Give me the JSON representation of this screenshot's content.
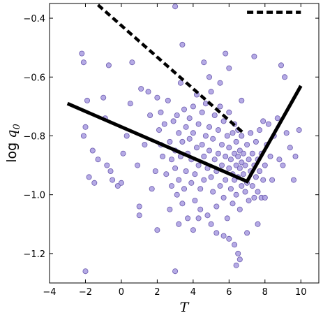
{
  "chart_data": {
    "type": "scatter",
    "title": "",
    "xlabel": "T",
    "ylabel": {
      "prefix": "log ",
      "symbol": "q",
      "subscript": "0"
    },
    "xlim": [
      -4,
      11
    ],
    "ylim": [
      -1.3,
      -0.35
    ],
    "xticks": [
      -4,
      -2,
      0,
      2,
      4,
      6,
      8,
      10
    ],
    "xtick_labels": [
      "−4",
      "−2",
      "0",
      "2",
      "4",
      "6",
      "8",
      "10"
    ],
    "yticks": [
      -1.2,
      -1.0,
      -0.8,
      -0.6,
      -0.4
    ],
    "ytick_labels": [
      "−1.2",
      "−1.0",
      "−0.8",
      "−0.6",
      "−0.4"
    ],
    "grid": false,
    "legend": "none",
    "colors": {
      "points_fill": "#a89be0",
      "points_edge": "#6a5aad",
      "lines": "#000000"
    },
    "points": [
      [
        -2.2,
        -0.52
      ],
      [
        -2.1,
        -0.55
      ],
      [
        -2.0,
        -0.77
      ],
      [
        -2.1,
        -0.8
      ],
      [
        -1.9,
        -0.68
      ],
      [
        -1.6,
        -0.85
      ],
      [
        -1.8,
        -0.94
      ],
      [
        -1.5,
        -0.96
      ],
      [
        -1.3,
        -0.88
      ],
      [
        -1.0,
        -0.67
      ],
      [
        -0.9,
        -0.74
      ],
      [
        -0.8,
        -0.9
      ],
      [
        -0.7,
        -0.56
      ],
      [
        -0.6,
        -0.92
      ],
      [
        -0.5,
        -0.95
      ],
      [
        -0.2,
        -0.97
      ],
      [
        0.0,
        -0.96
      ],
      [
        0.1,
        -0.86
      ],
      [
        0.3,
        -0.8
      ],
      [
        0.5,
        -0.69
      ],
      [
        0.6,
        -0.55
      ],
      [
        0.9,
        -0.9
      ],
      [
        1.0,
        -1.04
      ],
      [
        1.1,
        -0.64
      ],
      [
        1.3,
        -0.83
      ],
      [
        1.5,
        -0.65
      ],
      [
        1.6,
        -0.73
      ],
      [
        1.7,
        -0.98
      ],
      [
        1.9,
        -0.92
      ],
      [
        2.0,
        -0.67
      ],
      [
        2.1,
        -0.78
      ],
      [
        2.2,
        -0.83
      ],
      [
        2.3,
        -0.87
      ],
      [
        2.2,
        -0.72
      ],
      [
        2.4,
        -0.76
      ],
      [
        2.5,
        -0.93
      ],
      [
        2.6,
        -0.68
      ],
      [
        2.7,
        -0.82
      ],
      [
        2.8,
        -0.88
      ],
      [
        2.8,
        -0.97
      ],
      [
        2.9,
        -0.75
      ],
      [
        3.0,
        -0.91
      ],
      [
        3.0,
        -0.85
      ],
      [
        3.1,
        -1.0
      ],
      [
        3.1,
        -0.73
      ],
      [
        3.2,
        -0.79
      ],
      [
        3.2,
        -0.95
      ],
      [
        3.3,
        -0.62
      ],
      [
        3.3,
        -0.87
      ],
      [
        3.4,
        -1.03
      ],
      [
        3.4,
        -0.82
      ],
      [
        3.5,
        -0.98
      ],
      [
        3.5,
        -0.71
      ],
      [
        3.6,
        -0.77
      ],
      [
        3.6,
        -0.92
      ],
      [
        3.7,
        -0.86
      ],
      [
        3.7,
        -1.08
      ],
      [
        3.8,
        -0.74
      ],
      [
        3.8,
        -0.81
      ],
      [
        3.9,
        -0.96
      ],
      [
        3.9,
        -0.88
      ],
      [
        4.0,
        -0.7
      ],
      [
        4.0,
        -0.79
      ],
      [
        4.1,
        -1.02
      ],
      [
        4.1,
        -0.93
      ],
      [
        4.2,
        -0.84
      ],
      [
        4.2,
        -0.66
      ],
      [
        4.3,
        -0.76
      ],
      [
        4.3,
        -0.9
      ],
      [
        4.4,
        -0.98
      ],
      [
        4.4,
        -1.05
      ],
      [
        4.5,
        -0.72
      ],
      [
        4.5,
        -0.83
      ],
      [
        4.6,
        -0.87
      ],
      [
        4.6,
        -0.95
      ],
      [
        4.7,
        -0.69
      ],
      [
        4.7,
        -0.8
      ],
      [
        4.8,
        -0.91
      ],
      [
        4.8,
        -1.07
      ],
      [
        4.9,
        -0.85
      ],
      [
        4.9,
        -0.77
      ],
      [
        5.0,
        -0.94
      ],
      [
        5.0,
        -0.65
      ],
      [
        5.1,
        -0.81
      ],
      [
        5.1,
        -0.99
      ],
      [
        5.2,
        -0.88
      ],
      [
        5.2,
        -0.73
      ],
      [
        5.3,
        -1.04
      ],
      [
        5.3,
        -0.92
      ],
      [
        5.4,
        -0.78
      ],
      [
        5.4,
        -0.86
      ],
      [
        5.5,
        -0.97
      ],
      [
        5.5,
        -0.7
      ],
      [
        5.6,
        -0.83
      ],
      [
        5.6,
        -0.9
      ],
      [
        5.7,
        -1.01
      ],
      [
        5.7,
        -0.75
      ],
      [
        5.8,
        -0.87
      ],
      [
        5.8,
        -0.95
      ],
      [
        5.9,
        -0.8
      ],
      [
        5.9,
        -1.08
      ],
      [
        6.0,
        -0.91
      ],
      [
        6.0,
        -0.84
      ],
      [
        6.0,
        -0.72
      ],
      [
        6.1,
        -0.98
      ],
      [
        6.1,
        -0.88
      ],
      [
        6.2,
        -0.79
      ],
      [
        6.2,
        -0.93
      ],
      [
        6.2,
        -1.03
      ],
      [
        6.3,
        -0.86
      ],
      [
        6.3,
        -0.76
      ],
      [
        6.3,
        -0.95
      ],
      [
        6.4,
        -0.9
      ],
      [
        6.4,
        -0.82
      ],
      [
        6.4,
        -1.0
      ],
      [
        6.5,
        -0.87
      ],
      [
        6.5,
        -0.94
      ],
      [
        6.5,
        -0.78
      ],
      [
        6.6,
        -0.91
      ],
      [
        6.6,
        -0.85
      ],
      [
        6.6,
        -1.05
      ],
      [
        6.7,
        -0.97
      ],
      [
        6.7,
        -0.89
      ],
      [
        6.7,
        -0.8
      ],
      [
        6.8,
        -0.93
      ],
      [
        6.8,
        -0.86
      ],
      [
        6.9,
        -0.99
      ],
      [
        6.9,
        -0.9
      ],
      [
        7.0,
        -0.83
      ],
      [
        7.0,
        -0.96
      ],
      [
        7.1,
        -0.88
      ],
      [
        7.1,
        -1.02
      ],
      [
        7.2,
        -0.92
      ],
      [
        7.2,
        -0.79
      ],
      [
        7.3,
        -0.97
      ],
      [
        7.3,
        -0.86
      ],
      [
        7.4,
        -0.9
      ],
      [
        7.4,
        -1.01
      ],
      [
        7.5,
        -0.94
      ],
      [
        7.5,
        -0.82
      ],
      [
        7.6,
        -0.88
      ],
      [
        7.6,
        -0.99
      ],
      [
        7.7,
        -0.78
      ],
      [
        7.7,
        -0.92
      ],
      [
        7.8,
        -1.01
      ],
      [
        7.8,
        -0.86
      ],
      [
        7.9,
        -0.75
      ],
      [
        7.9,
        -0.95
      ],
      [
        8.0,
        -0.9
      ],
      [
        8.0,
        -1.01
      ],
      [
        8.1,
        -0.83
      ],
      [
        8.2,
        -0.76
      ],
      [
        8.3,
        -0.87
      ],
      [
        8.4,
        -0.95
      ],
      [
        8.5,
        -0.8
      ],
      [
        8.7,
        -0.74
      ],
      [
        8.8,
        -0.88
      ],
      [
        9.0,
        -0.9
      ],
      [
        9.1,
        -0.6
      ],
      [
        9.2,
        -0.79
      ],
      [
        9.4,
        -0.84
      ],
      [
        9.6,
        -0.95
      ],
      [
        9.7,
        -0.87
      ],
      [
        9.9,
        -0.78
      ],
      [
        8.9,
        -0.56
      ],
      [
        7.4,
        -0.53
      ],
      [
        6.7,
        -0.68
      ],
      [
        6.0,
        -0.57
      ],
      [
        5.5,
        -0.62
      ],
      [
        5.8,
        -0.52
      ],
      [
        4.9,
        -0.6
      ],
      [
        4.6,
        -0.55
      ],
      [
        3.4,
        -0.49
      ],
      [
        3.0,
        -0.36
      ],
      [
        4.0,
        -1.12
      ],
      [
        4.3,
        -1.08
      ],
      [
        5.0,
        -1.1
      ],
      [
        5.7,
        -1.14
      ],
      [
        6.3,
        -1.17
      ],
      [
        6.5,
        -1.2
      ],
      [
        6.6,
        -1.22
      ],
      [
        6.4,
        -1.24
      ],
      [
        6.0,
        -1.15
      ],
      [
        7.0,
        -1.13
      ],
      [
        7.6,
        -1.1
      ],
      [
        2.0,
        -1.12
      ],
      [
        2.7,
        -1.05
      ],
      [
        3.2,
        -1.1
      ],
      [
        3.0,
        -1.26
      ],
      [
        -2.0,
        -1.26
      ],
      [
        1.0,
        -1.07
      ],
      [
        5.3,
        -1.13
      ]
    ],
    "lines": [
      {
        "style": "solid",
        "x": [
          -3.0,
          7.0,
          10.0
        ],
        "y": [
          -0.69,
          -0.955,
          -0.63
        ]
      },
      {
        "style": "dashed",
        "x": [
          -1.3,
          6.8
        ],
        "y": [
          -0.355,
          -0.79
        ]
      },
      {
        "style": "dashed",
        "x": [
          7.0,
          10.0
        ],
        "y": [
          -0.38,
          -0.38
        ]
      }
    ]
  }
}
